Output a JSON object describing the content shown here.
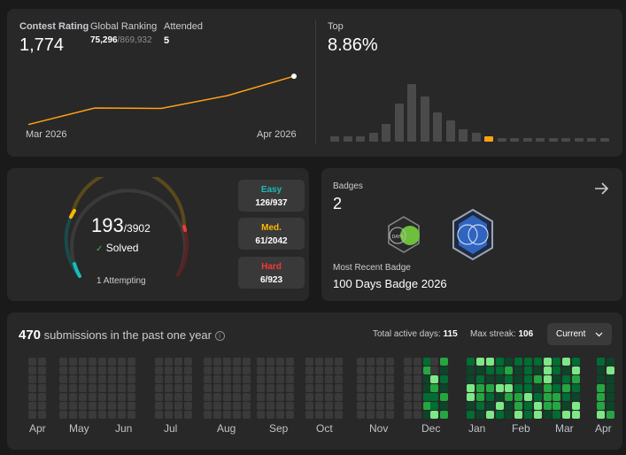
{
  "rating": {
    "contest_rating_label": "Contest Rating",
    "contest_rating": "1,774",
    "global_ranking_label": "Global Ranking",
    "global_rank": "75,296",
    "global_total": "/869,932",
    "attended_label": "Attended",
    "attended": "5",
    "chart_start": "Mar 2026",
    "chart_end": "Apr 2026"
  },
  "top": {
    "label": "Top",
    "value": "8.86%"
  },
  "chart_data": [
    {
      "type": "line",
      "x": [
        "Mar 2026",
        "",
        "",
        "",
        "Apr 2026"
      ],
      "values": [
        1540,
        1620,
        1618,
        1680,
        1774
      ],
      "color": "#ffa116"
    },
    {
      "type": "bar",
      "values": [
        3,
        3,
        3,
        5,
        10,
        22,
        33,
        26,
        17,
        12,
        7,
        5,
        3,
        2,
        2,
        2,
        2,
        2,
        2,
        2,
        2,
        2
      ],
      "highlight_index": 12,
      "color": "#4a4a4a",
      "highlight_color": "#ffa116"
    }
  ],
  "solved": {
    "count": "193",
    "total": "/3902",
    "solved_label": "Solved",
    "attempting": "1 Attempting",
    "easy_label": "Easy",
    "easy": "126/937",
    "medium_label": "Med.",
    "medium": "61/2042",
    "hard_label": "Hard",
    "hard": "6/923",
    "colors": {
      "easy": "#1cbaba",
      "medium": "#ffb700",
      "hard": "#f63737"
    }
  },
  "badges": {
    "label": "Badges",
    "count": "2",
    "recent_label": "Most Recent Badge",
    "recent_name": "100 Days Badge 2026",
    "icons": [
      "arrow-right-icon",
      "50-days-badge-icon",
      "100-days-badge-icon"
    ]
  },
  "submissions": {
    "count": "470",
    "text": "submissions in the past one year",
    "active_label": "Total active days:",
    "active_value": "115",
    "streak_label": "Max streak:",
    "streak_value": "106",
    "dropdown": "Current",
    "months": [
      "Apr",
      "May",
      "Jun",
      "Jul",
      "Aug",
      "Sep",
      "Oct",
      "Nov",
      "Dec",
      "Jan",
      "Feb",
      "Mar",
      "Apr"
    ],
    "colors": {
      "empty": "#3a3a3a",
      "l1": "#0e4429",
      "l2": "#006d32",
      "l3": "#26a641",
      "l4": "#7ee787"
    }
  }
}
